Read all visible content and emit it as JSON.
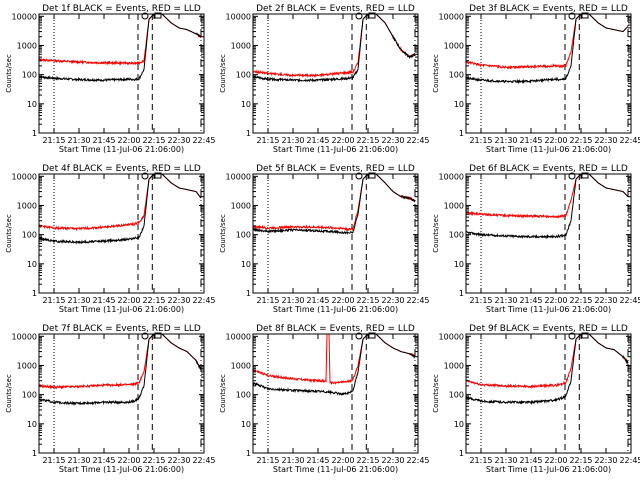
{
  "chart_data": [
    {
      "type": "line",
      "title": "Det 1f BLACK = Events, RED = LLD",
      "xlabel": "Start Time (11-Jul-06 21:06:00)",
      "ylabel": "Counts/sec",
      "x_ticks": [
        "21:15",
        "21:30",
        "21:45",
        "22:00",
        "22:15",
        "22:30",
        "22:45"
      ],
      "y_ticks": [
        "1",
        "10",
        "100",
        "1000",
        "10000"
      ],
      "y_scale": "log",
      "ylim": [
        1,
        12000
      ],
      "series": [
        {
          "color": "#000000",
          "x": [
            21.1,
            21.25,
            21.5,
            21.75,
            22.0,
            22.05,
            22.1,
            22.15,
            22.2,
            22.25,
            22.33,
            22.42,
            22.5,
            22.58,
            22.67,
            22.72
          ],
          "y": [
            85,
            75,
            68,
            65,
            70,
            68,
            72,
            150,
            8000,
            12000,
            12000,
            6000,
            4000,
            3500,
            2500,
            2000
          ]
        },
        {
          "color": "#ff0000",
          "x": [
            21.1,
            21.25,
            21.5,
            21.75,
            22.0,
            22.05,
            22.1,
            22.15,
            22.2,
            22.25,
            22.33,
            22.42,
            22.5,
            22.58,
            22.67,
            22.72
          ],
          "y": [
            330,
            300,
            270,
            255,
            250,
            240,
            255,
            300,
            8000,
            12000,
            12000,
            6000,
            4000,
            3500,
            2500,
            2000
          ]
        }
      ]
    },
    {
      "type": "line",
      "title": "Det 2f BLACK = Events, RED = LLD",
      "xlabel": "Start Time (11-Jul-06 21:06:00)",
      "ylabel": "Counts/sec",
      "x_ticks": [
        "21:15",
        "21:30",
        "21:45",
        "22:00",
        "22:15",
        "22:30",
        "22:45"
      ],
      "y_ticks": [
        "1",
        "10",
        "100",
        "1000",
        "10000"
      ],
      "y_scale": "log",
      "ylim": [
        1,
        12000
      ],
      "series": [
        {
          "color": "#000000",
          "x": [
            21.1,
            21.25,
            21.5,
            21.75,
            22.0,
            22.05,
            22.1,
            22.15,
            22.2,
            22.25,
            22.33,
            22.42,
            22.5,
            22.58,
            22.67,
            22.72
          ],
          "y": [
            85,
            70,
            65,
            65,
            72,
            75,
            80,
            150,
            8000,
            12000,
            12000,
            6000,
            2000,
            700,
            400,
            500
          ]
        },
        {
          "color": "#ff0000",
          "x": [
            21.1,
            21.25,
            21.5,
            21.75,
            22.0,
            22.05,
            22.1,
            22.15,
            22.2,
            22.25,
            22.33,
            22.42,
            22.5,
            22.58,
            22.67,
            22.72
          ],
          "y": [
            130,
            110,
            95,
            95,
            115,
            120,
            125,
            250,
            8000,
            12000,
            12000,
            6000,
            2000,
            700,
            400,
            500
          ]
        }
      ]
    },
    {
      "type": "line",
      "title": "Det 3f BLACK = Events, RED = LLD",
      "xlabel": "Start Time (11-Jul-06 21:06:00)",
      "ylabel": "Counts/sec",
      "x_ticks": [
        "21:15",
        "21:30",
        "21:45",
        "22:00",
        "22:15",
        "22:30",
        "22:45"
      ],
      "y_ticks": [
        "1",
        "10",
        "100",
        "1000",
        "10000"
      ],
      "y_scale": "log",
      "ylim": [
        1,
        12000
      ],
      "series": [
        {
          "color": "#000000",
          "x": [
            21.1,
            21.25,
            21.5,
            21.75,
            22.0,
            22.05,
            22.1,
            22.15,
            22.2,
            22.25,
            22.33,
            22.42,
            22.5,
            22.58,
            22.67,
            22.72
          ],
          "y": [
            75,
            65,
            58,
            60,
            70,
            65,
            75,
            200,
            8000,
            12000,
            12000,
            6000,
            4000,
            3500,
            3000,
            4500
          ]
        },
        {
          "color": "#ff0000",
          "x": [
            21.1,
            21.25,
            21.5,
            21.75,
            22.0,
            22.05,
            22.1,
            22.15,
            22.2,
            22.25,
            22.33,
            22.42,
            22.5,
            22.58,
            22.67,
            22.72
          ],
          "y": [
            280,
            210,
            180,
            190,
            200,
            190,
            210,
            600,
            8000,
            12000,
            12000,
            6000,
            4000,
            3500,
            3000,
            4500
          ]
        }
      ]
    },
    {
      "type": "line",
      "title": "Det 4f BLACK = Events, RED = LLD",
      "xlabel": "Start Time (11-Jul-06 21:06:00)",
      "ylabel": "Counts/sec",
      "x_ticks": [
        "21:15",
        "21:30",
        "21:45",
        "22:00",
        "22:15",
        "22:30",
        "22:45"
      ],
      "y_ticks": [
        "1",
        "10",
        "100",
        "1000",
        "10000"
      ],
      "y_scale": "log",
      "ylim": [
        1,
        12000
      ],
      "series": [
        {
          "color": "#000000",
          "x": [
            21.1,
            21.25,
            21.5,
            21.75,
            22.0,
            22.05,
            22.1,
            22.15,
            22.2,
            22.25,
            22.33,
            22.42,
            22.5,
            22.58,
            22.67,
            22.72
          ],
          "y": [
            75,
            60,
            55,
            60,
            70,
            75,
            80,
            200,
            8000,
            12000,
            12000,
            6000,
            4000,
            3500,
            3000,
            1800
          ]
        },
        {
          "color": "#ff0000",
          "x": [
            21.1,
            21.25,
            21.5,
            21.75,
            22.0,
            22.05,
            22.1,
            22.15,
            22.2,
            22.25,
            22.33,
            22.42,
            22.5,
            22.58,
            22.67,
            22.72
          ],
          "y": [
            200,
            170,
            160,
            180,
            220,
            230,
            260,
            450,
            8000,
            12000,
            12000,
            6000,
            4000,
            3500,
            3000,
            1800
          ]
        }
      ]
    },
    {
      "type": "line",
      "title": "Det 5f BLACK = Events, RED = LLD",
      "xlabel": "Start Time (11-Jul-06 21:06:00)",
      "ylabel": "Counts/sec",
      "x_ticks": [
        "21:15",
        "21:30",
        "21:45",
        "22:00",
        "22:15",
        "22:30",
        "22:45"
      ],
      "y_ticks": [
        "1",
        "10",
        "100",
        "1000",
        "10000"
      ],
      "y_scale": "log",
      "ylim": [
        1,
        12000
      ],
      "series": [
        {
          "color": "#000000",
          "x": [
            21.1,
            21.25,
            21.5,
            21.75,
            22.0,
            22.05,
            22.1,
            22.15,
            22.2,
            22.25,
            22.33,
            22.42,
            22.5,
            22.58,
            22.67,
            22.72
          ],
          "y": [
            150,
            130,
            145,
            135,
            120,
            115,
            120,
            500,
            8000,
            12000,
            12000,
            6000,
            3000,
            2000,
            1800,
            1400
          ]
        },
        {
          "color": "#ff0000",
          "x": [
            21.1,
            21.25,
            21.5,
            21.75,
            22.0,
            22.05,
            22.1,
            22.15,
            22.2,
            22.25,
            22.33,
            22.42,
            22.5,
            22.58,
            22.67,
            22.72
          ],
          "y": [
            190,
            170,
            185,
            180,
            165,
            150,
            160,
            700,
            8000,
            12000,
            12000,
            6000,
            3000,
            2000,
            1800,
            1400
          ]
        }
      ]
    },
    {
      "type": "line",
      "title": "Det 6f BLACK = Events, RED = LLD",
      "xlabel": "Start Time (11-Jul-06 21:06:00)",
      "ylabel": "Counts/sec",
      "x_ticks": [
        "21:15",
        "21:30",
        "21:45",
        "22:00",
        "22:15",
        "22:30",
        "22:45"
      ],
      "y_ticks": [
        "1",
        "10",
        "100",
        "1000",
        "10000"
      ],
      "y_scale": "log",
      "ylim": [
        1,
        12000
      ],
      "series": [
        {
          "color": "#000000",
          "x": [
            21.1,
            21.25,
            21.5,
            21.75,
            22.0,
            22.05,
            22.1,
            22.15,
            22.2,
            22.25,
            22.33,
            22.42,
            22.5,
            22.58,
            22.67,
            22.72
          ],
          "y": [
            120,
            100,
            90,
            85,
            85,
            90,
            100,
            300,
            8000,
            12000,
            12000,
            6000,
            4000,
            3500,
            3000,
            2000
          ]
        },
        {
          "color": "#ff0000",
          "x": [
            21.1,
            21.25,
            21.5,
            21.75,
            22.0,
            22.05,
            22.1,
            22.15,
            22.2,
            22.25,
            22.33,
            22.42,
            22.5,
            22.58,
            22.67,
            22.72
          ],
          "y": [
            550,
            500,
            450,
            430,
            420,
            420,
            450,
            1500,
            8000,
            12000,
            12000,
            6000,
            4000,
            3500,
            3000,
            2000
          ]
        }
      ]
    },
    {
      "type": "line",
      "title": "Det 7f BLACK = Events, RED = LLD",
      "xlabel": "Start Time (11-Jul-06 21:06:00)",
      "ylabel": "Counts/sec",
      "x_ticks": [
        "21:15",
        "21:30",
        "21:45",
        "22:00",
        "22:15",
        "22:30",
        "22:45"
      ],
      "y_ticks": [
        "1",
        "10",
        "100",
        "1000",
        "10000"
      ],
      "y_scale": "log",
      "ylim": [
        1,
        12000
      ],
      "series": [
        {
          "color": "#000000",
          "x": [
            21.1,
            21.25,
            21.5,
            21.75,
            22.0,
            22.05,
            22.1,
            22.15,
            22.2,
            22.25,
            22.33,
            22.42,
            22.5,
            22.58,
            22.67,
            22.72
          ],
          "y": [
            70,
            55,
            50,
            55,
            55,
            60,
            75,
            200,
            8000,
            12000,
            12000,
            6000,
            4000,
            3000,
            1500,
            700
          ]
        },
        {
          "color": "#ff0000",
          "x": [
            21.1,
            21.25,
            21.5,
            21.75,
            22.0,
            22.05,
            22.1,
            22.15,
            22.2,
            22.25,
            22.33,
            22.42,
            22.5,
            22.58,
            22.67,
            22.72
          ],
          "y": [
            200,
            180,
            190,
            210,
            220,
            230,
            260,
            600,
            8000,
            12000,
            12000,
            6000,
            4000,
            3000,
            1500,
            700
          ]
        }
      ]
    },
    {
      "type": "line",
      "title": "Det 8f BLACK = Events, RED = LLD",
      "xlabel": "Start Time (11-Jul-06 21:06:00)",
      "ylabel": "Counts/sec",
      "x_ticks": [
        "21:15",
        "21:30",
        "21:45",
        "22:00",
        "22:15",
        "22:30",
        "22:45"
      ],
      "y_ticks": [
        "1",
        "10",
        "100",
        "1000",
        "10000"
      ],
      "y_scale": "log",
      "ylim": [
        1,
        12000
      ],
      "series": [
        {
          "color": "#000000",
          "x": [
            21.1,
            21.25,
            21.5,
            21.75,
            21.85,
            21.95,
            22.0,
            22.05,
            22.1,
            22.15,
            22.2,
            22.25,
            22.33,
            22.42,
            22.5,
            22.58,
            22.67,
            22.72
          ],
          "y": [
            250,
            160,
            140,
            130,
            125,
            110,
            105,
            110,
            140,
            600,
            8000,
            12000,
            12000,
            6000,
            4000,
            3000,
            2500,
            2000
          ]
        },
        {
          "color": "#ff0000",
          "x": [
            21.1,
            21.25,
            21.5,
            21.75,
            21.83,
            21.84,
            21.86,
            21.87,
            21.95,
            22.0,
            22.05,
            22.1,
            22.15,
            22.2,
            22.25,
            22.33,
            22.42,
            22.5,
            22.58,
            22.67,
            22.72
          ],
          "y": [
            700,
            450,
            350,
            300,
            290,
            12000,
            12000,
            250,
            260,
            270,
            280,
            330,
            1000,
            8000,
            12000,
            12000,
            6000,
            4000,
            3000,
            2500,
            2000
          ]
        }
      ]
    },
    {
      "type": "line",
      "title": "Det 9f BLACK = Events, RED = LLD",
      "xlabel": "Start Time (11-Jul-06 21:06:00)",
      "ylabel": "Counts/sec",
      "x_ticks": [
        "21:15",
        "21:30",
        "21:45",
        "22:00",
        "22:15",
        "22:30",
        "22:45"
      ],
      "y_ticks": [
        "1",
        "10",
        "100",
        "1000",
        "10000"
      ],
      "y_scale": "log",
      "ylim": [
        1,
        12000
      ],
      "series": [
        {
          "color": "#000000",
          "x": [
            21.1,
            21.25,
            21.5,
            21.75,
            22.0,
            22.05,
            22.1,
            22.15,
            22.2,
            22.25,
            22.33,
            22.42,
            22.5,
            22.58,
            22.67,
            22.72
          ],
          "y": [
            80,
            60,
            55,
            55,
            65,
            75,
            90,
            300,
            8000,
            12000,
            12000,
            6000,
            4000,
            3500,
            2000,
            1200
          ]
        },
        {
          "color": "#ff0000",
          "x": [
            21.1,
            21.25,
            21.5,
            21.75,
            22.0,
            22.05,
            22.1,
            22.15,
            22.2,
            22.25,
            22.33,
            22.42,
            22.5,
            22.58,
            22.67,
            22.72
          ],
          "y": [
            300,
            220,
            200,
            190,
            210,
            230,
            260,
            800,
            8000,
            12000,
            12000,
            6000,
            4000,
            3500,
            2000,
            1200
          ]
        }
      ]
    }
  ]
}
